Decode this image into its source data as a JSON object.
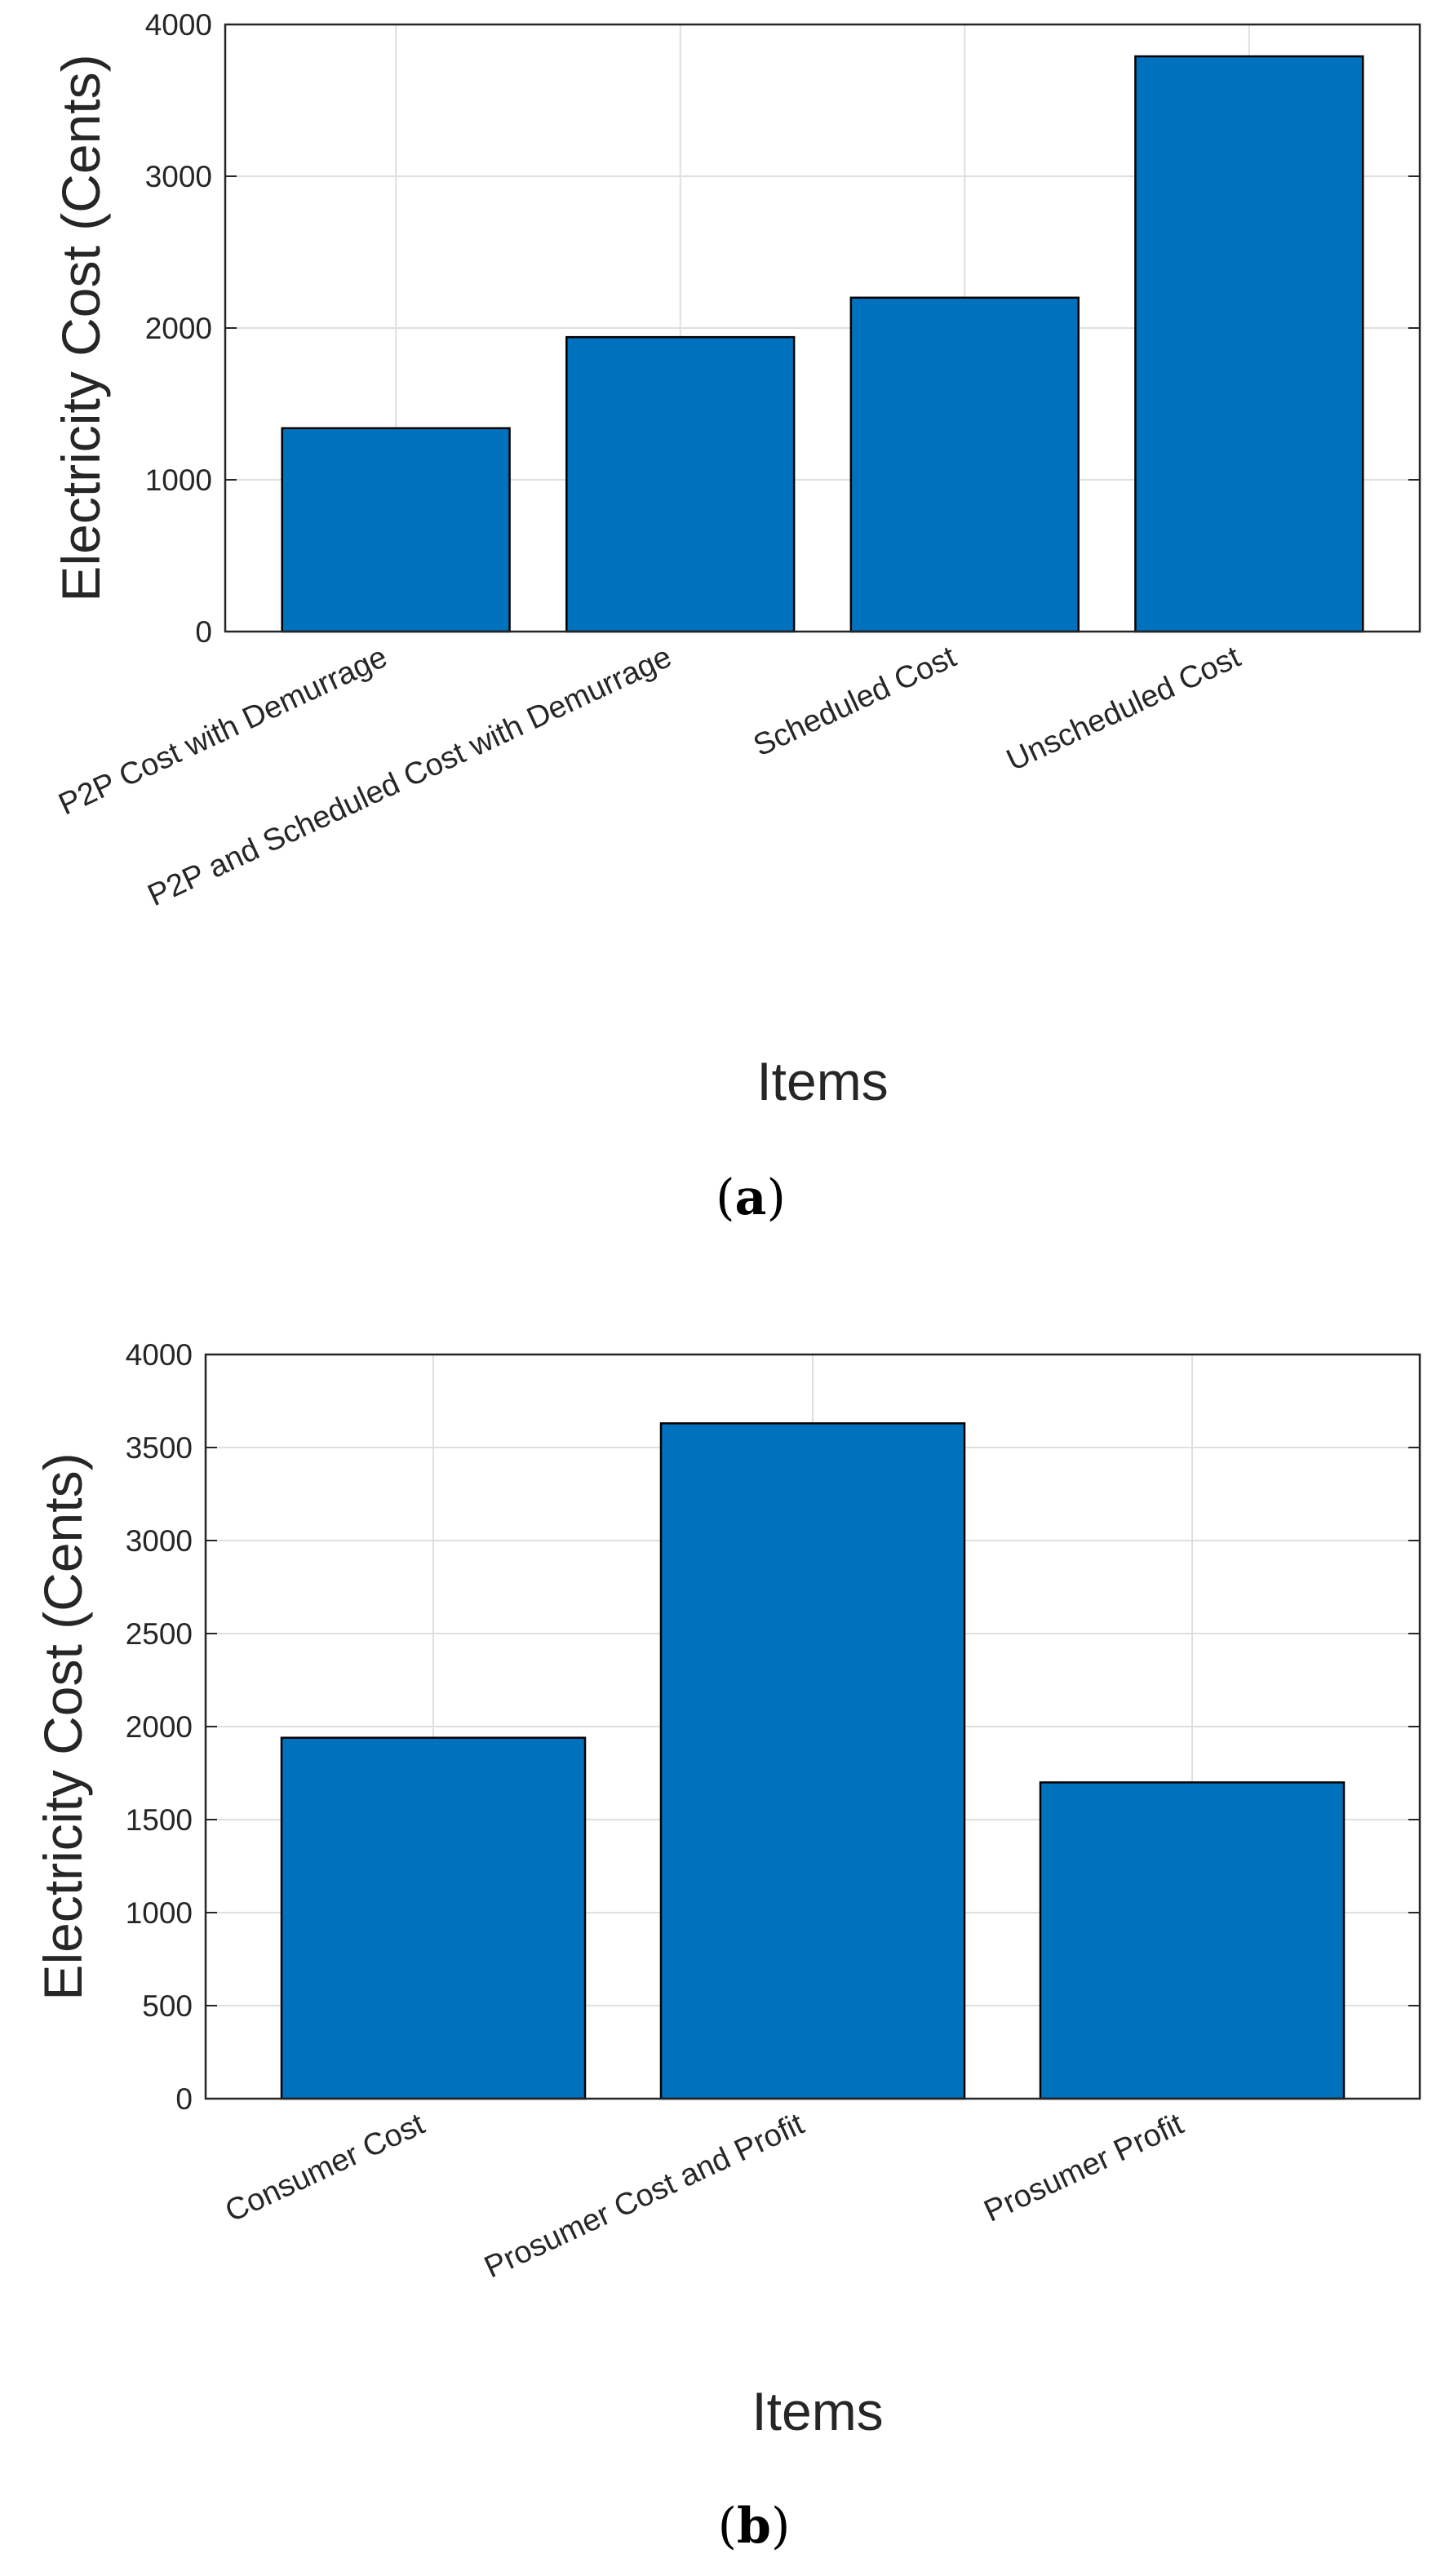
{
  "chart_data": [
    {
      "type": "bar",
      "caption": "a",
      "categories": [
        "P2P Cost with Demurrage",
        "P2P and Scheduled Cost with Demurrage",
        "Scheduled Cost",
        "Unscheduled Cost"
      ],
      "values": [
        1340,
        1940,
        2200,
        3790
      ],
      "xlabel": "Items",
      "ylabel": "Electricity Cost (Cents)",
      "ylim": [
        0,
        4000
      ],
      "yticks": [
        0,
        1000,
        2000,
        3000,
        4000
      ],
      "grid": true,
      "bar_color": "#0072BD"
    },
    {
      "type": "bar",
      "caption": "b",
      "categories": [
        "Consumer Cost",
        "Prosumer Cost and Profit",
        "Prosumer Profit"
      ],
      "values": [
        1940,
        3630,
        1700
      ],
      "xlabel": "Items",
      "ylabel": "Electricity Cost (Cents)",
      "ylim": [
        0,
        4000
      ],
      "yticks": [
        0,
        500,
        1000,
        1500,
        2000,
        2500,
        3000,
        3500,
        4000
      ],
      "grid": true,
      "bar_color": "#0072BD"
    }
  ]
}
